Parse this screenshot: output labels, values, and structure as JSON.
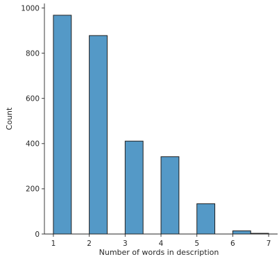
{
  "chart_data": {
    "type": "bar",
    "title": "",
    "xlabel": "Number of words in description",
    "ylabel": "Count",
    "xlim": [
      0.75,
      7.25
    ],
    "ylim": [
      0,
      1020
    ],
    "grid": false,
    "legend": "none",
    "bar_color": "#5499c7",
    "edge_color": "#1f1f1f",
    "bin_width": 0.5,
    "bins": [
      {
        "x0": 1.0,
        "x1": 1.5,
        "count": 968
      },
      {
        "x0": 1.5,
        "x1": 2.0,
        "count": 0
      },
      {
        "x0": 2.0,
        "x1": 2.5,
        "count": 878
      },
      {
        "x0": 2.5,
        "x1": 3.0,
        "count": 0
      },
      {
        "x0": 3.0,
        "x1": 3.5,
        "count": 411
      },
      {
        "x0": 3.5,
        "x1": 4.0,
        "count": 0
      },
      {
        "x0": 4.0,
        "x1": 4.5,
        "count": 342
      },
      {
        "x0": 4.5,
        "x1": 5.0,
        "count": 0
      },
      {
        "x0": 5.0,
        "x1": 5.5,
        "count": 134
      },
      {
        "x0": 5.5,
        "x1": 6.0,
        "count": 0
      },
      {
        "x0": 6.0,
        "x1": 6.5,
        "count": 14
      },
      {
        "x0": 6.5,
        "x1": 7.0,
        "count": 3
      }
    ],
    "x_ticks": [
      1,
      2,
      3,
      4,
      5,
      6,
      7
    ],
    "y_ticks": [
      0,
      200,
      400,
      600,
      800,
      1000
    ]
  }
}
